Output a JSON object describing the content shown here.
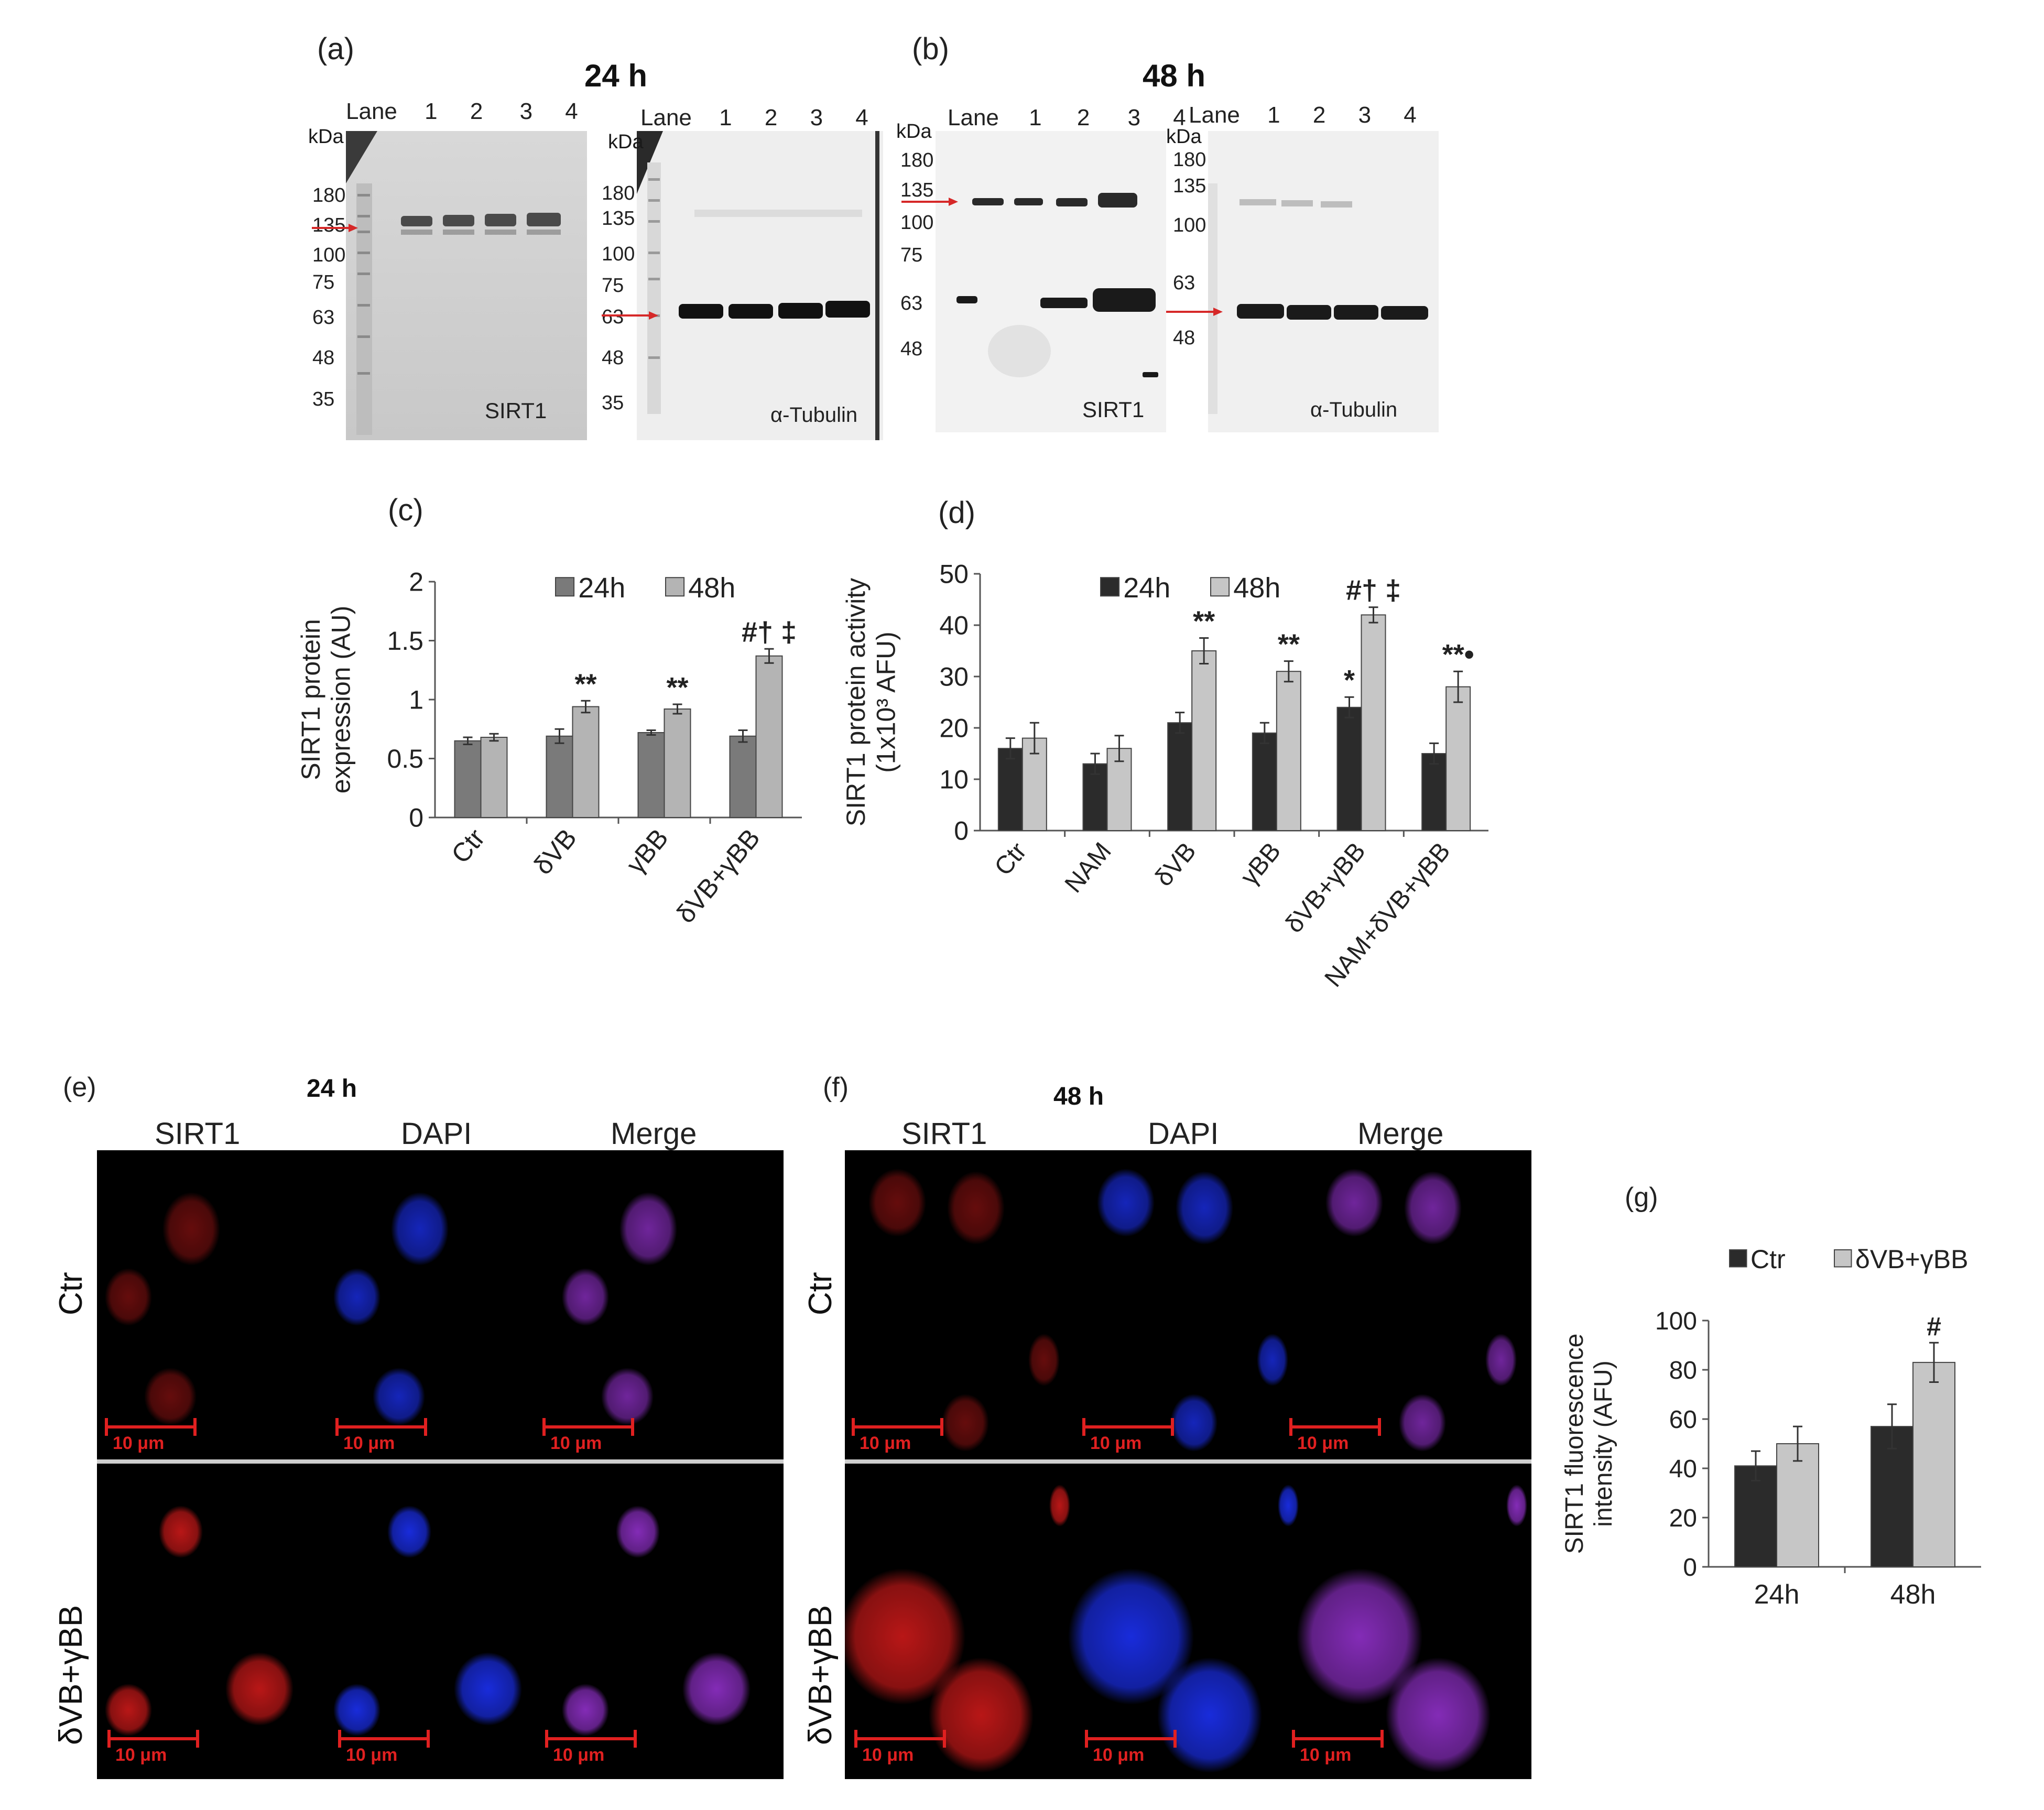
{
  "panels": {
    "a": "(a)",
    "b": "(b)",
    "c": "(c)",
    "d": "(d)",
    "e": "(e)",
    "f": "(f)",
    "g": "(g)"
  },
  "blots": {
    "a_title": "24 h",
    "b_title": "48 h",
    "lane_word": "Lane",
    "lanes": [
      "1",
      "2",
      "3",
      "4"
    ],
    "kda": "kDa",
    "a_sirt1_markers": [
      "180",
      "135",
      "100",
      "75",
      "63",
      "48",
      "35"
    ],
    "a_tub_markers": [
      "180",
      "135",
      "100",
      "75",
      "63",
      "48",
      "35"
    ],
    "b_sirt1_markers": [
      "180",
      "135",
      "100",
      "75",
      "63",
      "48"
    ],
    "b_tub_markers": [
      "180",
      "135",
      "100",
      "63",
      "48"
    ],
    "sirt1_label": "SIRT1",
    "tubulin_label": "α-Tubulin"
  },
  "micro": {
    "e_title": "24 h",
    "f_title": "48 h",
    "columns": [
      "SIRT1",
      "DAPI",
      "Merge"
    ],
    "rows": [
      "Ctr",
      "δVB+γBB"
    ],
    "scale": "10 μm"
  },
  "colors": {
    "dark_bar_c": "#7a7a7a",
    "light_bar_c": "#b4b4b4",
    "dark_bar_d": "#2b2b2b",
    "light_bar_d": "#c6c6c6"
  },
  "chart_data": [
    {
      "id": "c",
      "type": "bar",
      "ylabel": "SIRT1 protein expression (AU)",
      "ylim": [
        0,
        2
      ],
      "yticks": [
        0,
        0.5,
        1,
        1.5,
        2
      ],
      "ytick_labels": [
        "0",
        "0.5",
        "1",
        "1.5",
        "2"
      ],
      "categories": [
        "Ctr",
        "δVB",
        "γBB",
        "δVB+γBB"
      ],
      "series": [
        {
          "name": "24h",
          "values": [
            0.65,
            0.69,
            0.72,
            0.69
          ],
          "errors": [
            0.03,
            0.06,
            0.02,
            0.05
          ]
        },
        {
          "name": "48h",
          "values": [
            0.68,
            0.94,
            0.92,
            1.37
          ],
          "errors": [
            0.03,
            0.05,
            0.04,
            0.06
          ]
        }
      ],
      "annotations": [
        {
          "category": 1,
          "series": 1,
          "text": "**"
        },
        {
          "category": 2,
          "series": 1,
          "text": "**"
        },
        {
          "category": 3,
          "series": 1,
          "text": "#† ‡"
        }
      ],
      "legend": "top"
    },
    {
      "id": "d",
      "type": "bar",
      "ylabel": "SIRT1 protein activity (1x10³ AFU)",
      "ylim": [
        0,
        50
      ],
      "yticks": [
        0,
        10,
        20,
        30,
        40,
        50
      ],
      "ytick_labels": [
        "0",
        "10",
        "20",
        "30",
        "40",
        "50"
      ],
      "categories": [
        "Ctr",
        "NAM",
        "δVB",
        "γBB",
        "δVB+γBB",
        "NAM+δVB+γBB"
      ],
      "series": [
        {
          "name": "24h",
          "values": [
            16,
            13,
            21,
            19,
            24,
            15
          ],
          "errors": [
            2,
            2,
            2,
            2,
            2,
            2
          ]
        },
        {
          "name": "48h",
          "values": [
            18,
            16,
            35,
            31,
            42,
            28
          ],
          "errors": [
            3,
            2.5,
            2.5,
            2,
            1.5,
            3
          ]
        }
      ],
      "annotations": [
        {
          "category": 2,
          "series": 1,
          "text": "**"
        },
        {
          "category": 3,
          "series": 1,
          "text": "**"
        },
        {
          "category": 4,
          "series": 0,
          "text": "*"
        },
        {
          "category": 4,
          "series": 1,
          "text": "#† ‡"
        },
        {
          "category": 5,
          "series": 1,
          "text": "**•"
        }
      ],
      "legend": "top"
    },
    {
      "id": "g",
      "type": "bar",
      "ylabel": "SIRT1 fluorescence intensity (AFU)",
      "ylim": [
        0,
        100
      ],
      "yticks": [
        0,
        20,
        40,
        60,
        80,
        100
      ],
      "ytick_labels": [
        "0",
        "20",
        "40",
        "60",
        "80",
        "100"
      ],
      "categories": [
        "24h",
        "48h"
      ],
      "series": [
        {
          "name": "Ctr",
          "values": [
            41,
            57
          ],
          "errors": [
            6,
            9
          ]
        },
        {
          "name": "δVB+γBB",
          "values": [
            50,
            83
          ],
          "errors": [
            7,
            8
          ]
        }
      ],
      "annotations": [
        {
          "category": 1,
          "series": 1,
          "text": "#"
        }
      ],
      "legend": "top"
    }
  ]
}
